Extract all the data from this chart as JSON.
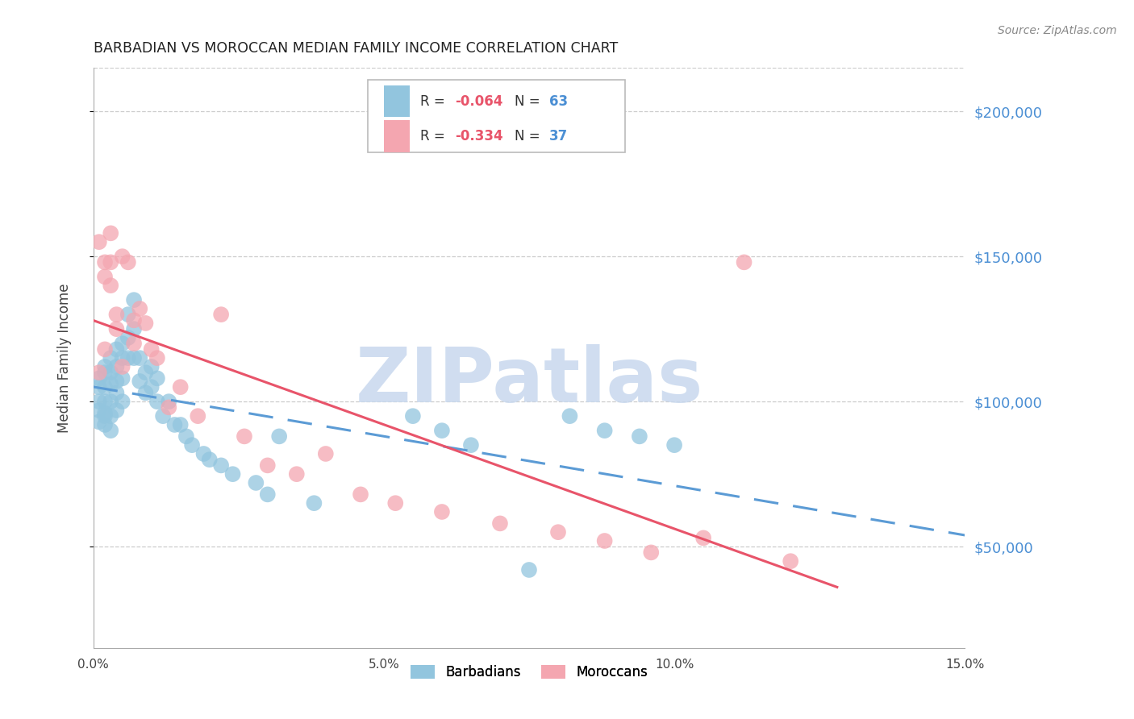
{
  "title": "BARBADIAN VS MOROCCAN MEDIAN FAMILY INCOME CORRELATION CHART",
  "source": "Source: ZipAtlas.com",
  "ylabel": "Median Family Income",
  "xmin": 0.0,
  "xmax": 0.15,
  "ymin": 15000,
  "ymax": 215000,
  "barbadian_color": "#92c5de",
  "moroccan_color": "#f4a6b0",
  "barbadian_line_color": "#5b9bd5",
  "moroccan_line_color": "#e8546a",
  "watermark_text": "ZIPatlas",
  "watermark_color": "#c8d8ee",
  "legend_R1": "-0.064",
  "legend_N1": "63",
  "legend_R2": "-0.334",
  "legend_N2": "37",
  "barbadian_x": [
    0.001,
    0.001,
    0.001,
    0.001,
    0.001,
    0.002,
    0.002,
    0.002,
    0.002,
    0.002,
    0.002,
    0.002,
    0.003,
    0.003,
    0.003,
    0.003,
    0.003,
    0.003,
    0.004,
    0.004,
    0.004,
    0.004,
    0.004,
    0.005,
    0.005,
    0.005,
    0.005,
    0.006,
    0.006,
    0.006,
    0.007,
    0.007,
    0.007,
    0.008,
    0.008,
    0.009,
    0.009,
    0.01,
    0.01,
    0.011,
    0.011,
    0.012,
    0.013,
    0.014,
    0.015,
    0.016,
    0.017,
    0.019,
    0.02,
    0.022,
    0.024,
    0.028,
    0.03,
    0.032,
    0.038,
    0.055,
    0.06,
    0.065,
    0.075,
    0.082,
    0.088,
    0.094,
    0.1
  ],
  "barbadian_y": [
    105000,
    100000,
    97000,
    93000,
    108000,
    110000,
    105000,
    100000,
    96000,
    92000,
    112000,
    95000,
    115000,
    110000,
    106000,
    100000,
    95000,
    90000,
    118000,
    112000,
    107000,
    103000,
    97000,
    120000,
    115000,
    108000,
    100000,
    130000,
    122000,
    115000,
    135000,
    125000,
    115000,
    115000,
    107000,
    110000,
    103000,
    112000,
    105000,
    108000,
    100000,
    95000,
    100000,
    92000,
    92000,
    88000,
    85000,
    82000,
    80000,
    78000,
    75000,
    72000,
    68000,
    88000,
    65000,
    95000,
    90000,
    85000,
    42000,
    95000,
    90000,
    88000,
    85000
  ],
  "moroccan_x": [
    0.001,
    0.001,
    0.002,
    0.002,
    0.002,
    0.003,
    0.003,
    0.003,
    0.004,
    0.004,
    0.005,
    0.005,
    0.006,
    0.007,
    0.007,
    0.008,
    0.009,
    0.01,
    0.011,
    0.013,
    0.015,
    0.018,
    0.022,
    0.026,
    0.03,
    0.035,
    0.04,
    0.046,
    0.052,
    0.06,
    0.07,
    0.08,
    0.088,
    0.096,
    0.105,
    0.112,
    0.12
  ],
  "moroccan_y": [
    110000,
    155000,
    148000,
    143000,
    118000,
    158000,
    148000,
    140000,
    130000,
    125000,
    150000,
    112000,
    148000,
    128000,
    120000,
    132000,
    127000,
    118000,
    115000,
    98000,
    105000,
    95000,
    130000,
    88000,
    78000,
    75000,
    82000,
    68000,
    65000,
    62000,
    58000,
    55000,
    52000,
    48000,
    53000,
    148000,
    45000
  ]
}
